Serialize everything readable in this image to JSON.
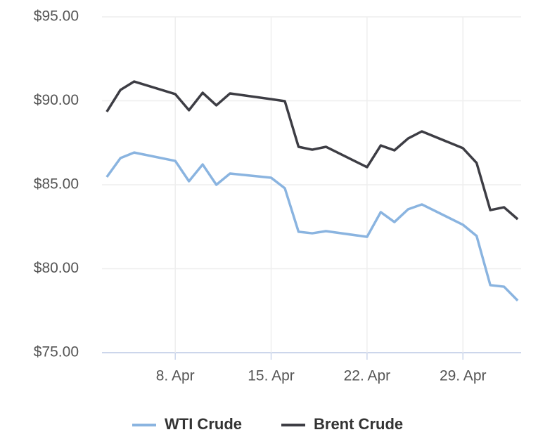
{
  "chart_data": {
    "type": "line",
    "x": [
      3,
      4,
      5,
      8,
      9,
      10,
      11,
      12,
      15,
      16,
      17,
      18,
      19,
      22,
      23,
      24,
      25,
      26,
      29,
      30,
      31,
      32,
      33
    ],
    "series": [
      {
        "name": "WTI Crude",
        "color": "#8ab4e0",
        "values": [
          85.46,
          86.59,
          86.92,
          86.42,
          85.21,
          86.21,
          85.0,
          85.67,
          85.42,
          84.79,
          82.2,
          82.11,
          82.24,
          81.9,
          83.37,
          82.78,
          83.54,
          83.83,
          82.62,
          81.95,
          79.02,
          78.93,
          78.1
        ]
      },
      {
        "name": "Brent Crude",
        "color": "#3d3d44",
        "values": [
          89.35,
          90.65,
          91.15,
          90.4,
          89.44,
          90.48,
          89.73,
          90.44,
          90.1,
          89.98,
          87.26,
          87.09,
          87.26,
          86.05,
          87.34,
          87.05,
          87.76,
          88.18,
          87.18,
          86.3,
          83.49,
          83.66,
          82.95
        ]
      }
    ],
    "xlim": [
      2.65,
      33.25
    ],
    "xticks": [
      {
        "value": 8,
        "label": "8. Apr"
      },
      {
        "value": 15,
        "label": "15. Apr"
      },
      {
        "value": 22,
        "label": "22. Apr"
      },
      {
        "value": 29,
        "label": "29. Apr"
      }
    ],
    "ylim": [
      75,
      95
    ],
    "yticks": [
      {
        "value": 75,
        "label": "$75.00"
      },
      {
        "value": 80,
        "label": "$80.00"
      },
      {
        "value": 85,
        "label": "$85.00"
      },
      {
        "value": 90,
        "label": "$90.00"
      },
      {
        "value": 95,
        "label": "$95.00"
      }
    ],
    "grid": true,
    "legend": "bottom"
  }
}
